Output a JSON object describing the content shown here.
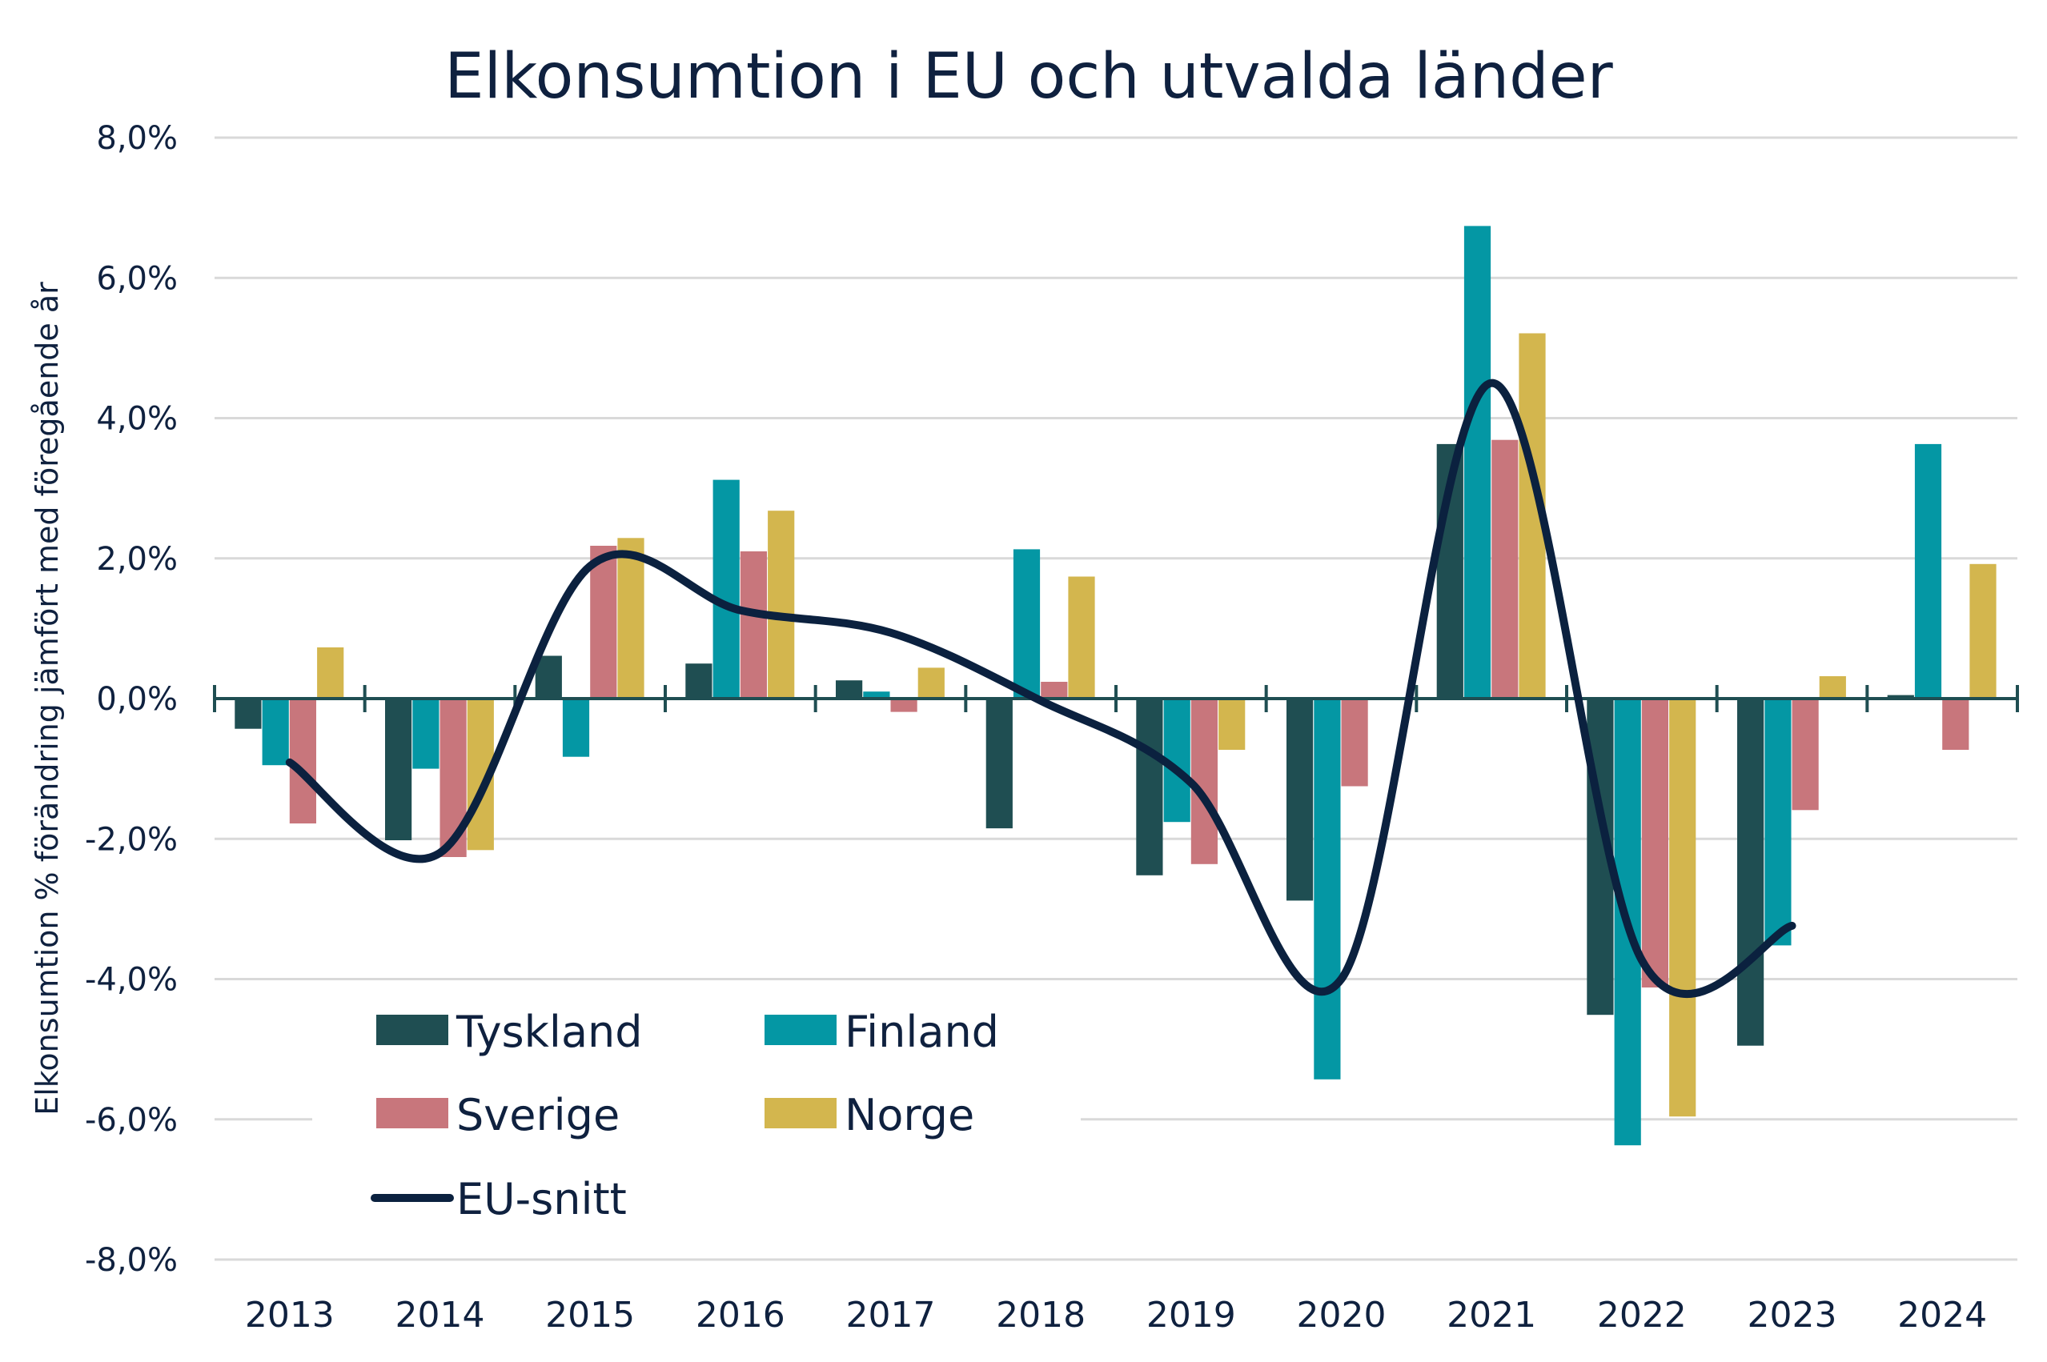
{
  "chart_data": {
    "type": "bar",
    "title": "Elkonsumtion i EU och utvalda länder",
    "xlabel": "",
    "ylabel": "Elkonsumtion % förändring jämfört med föregående år",
    "ylim": [
      -8,
      8
    ],
    "yticks": [
      8,
      6,
      4,
      2,
      0,
      -2,
      -4,
      -6,
      -8
    ],
    "ytick_labels": [
      "8,0%",
      "6,0%",
      "4,0%",
      "2,0%",
      "0,0%",
      "-2,0%",
      "-4,0%",
      "-6,0%",
      "-8,0%"
    ],
    "grid": true,
    "legend_position": "bottom-left",
    "categories": [
      "2013",
      "2014",
      "2015",
      "2016",
      "2017",
      "2018",
      "2019",
      "2020",
      "2021",
      "2022",
      "2023",
      "2024"
    ],
    "series": [
      {
        "name": "Tyskland",
        "type": "bar",
        "color": "#1f4e52",
        "values": [
          -0.43,
          -2.02,
          0.61,
          0.5,
          0.26,
          -1.85,
          -2.52,
          -2.88,
          3.63,
          -4.51,
          -4.95,
          0.05
        ]
      },
      {
        "name": "Finland",
        "type": "bar",
        "color": "#0497a4",
        "values": [
          -0.95,
          -1.0,
          -0.83,
          3.12,
          0.1,
          2.13,
          -1.76,
          -5.43,
          6.74,
          -6.37,
          -3.52,
          3.63
        ]
      },
      {
        "name": "Sverige",
        "type": "bar",
        "color": "#c8767c",
        "values": [
          -1.78,
          -2.26,
          2.18,
          2.1,
          -0.19,
          0.24,
          -2.36,
          -1.25,
          3.69,
          -4.12,
          -1.59,
          -0.73
        ]
      },
      {
        "name": "Norge",
        "type": "bar",
        "color": "#d3b64e",
        "values": [
          0.73,
          -2.16,
          2.29,
          2.68,
          0.44,
          1.74,
          -0.73,
          null,
          5.21,
          -5.96,
          0.32,
          1.92
        ]
      },
      {
        "name": "EU-snitt",
        "type": "line",
        "color": "#0b213f",
        "values": [
          -0.91,
          -2.2,
          1.89,
          1.26,
          0.94,
          -0.03,
          -1.2,
          -4.0,
          4.5,
          -3.73,
          -3.24,
          null
        ]
      }
    ]
  }
}
